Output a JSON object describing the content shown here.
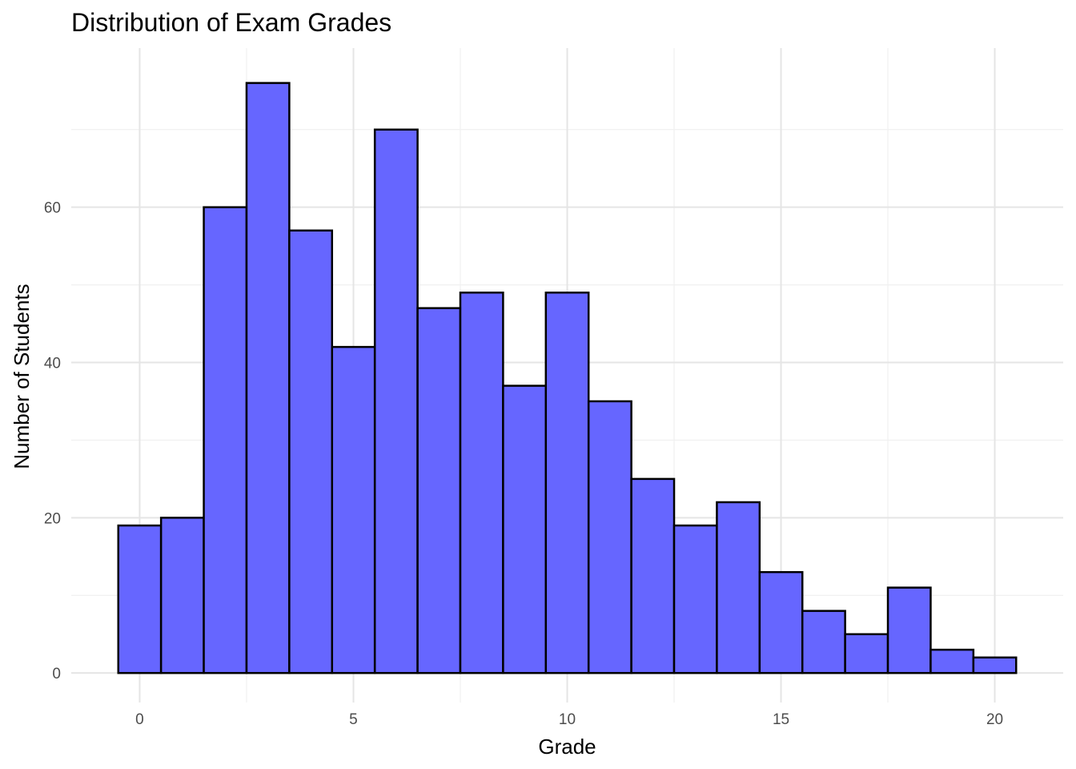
{
  "chart_data": {
    "type": "bar",
    "title": "Distribution of Exam Grades",
    "xlabel": "Grade",
    "ylabel": "Number of Students",
    "x": [
      0,
      1,
      2,
      3,
      4,
      5,
      6,
      7,
      8,
      9,
      10,
      11,
      12,
      13,
      14,
      15,
      16,
      17,
      18,
      19,
      20
    ],
    "values": [
      19,
      20,
      60,
      76,
      57,
      42,
      70,
      47,
      49,
      37,
      49,
      35,
      25,
      19,
      22,
      13,
      8,
      5,
      11,
      3,
      2
    ],
    "bin_width": 1,
    "xlim": [
      -1.6,
      21.6
    ],
    "ylim": [
      -3.8,
      80.5
    ],
    "x_ticks": [
      0,
      5,
      10,
      15,
      20
    ],
    "x_tick_labels": [
      "0",
      "5",
      "10",
      "15",
      "20"
    ],
    "y_ticks": [
      0,
      20,
      40,
      60
    ],
    "y_tick_labels": [
      "0",
      "20",
      "40",
      "60"
    ],
    "grid": true,
    "fill_color": "#6666FF",
    "edge_color": "#000000",
    "grid_color": "#E5E5E5"
  }
}
